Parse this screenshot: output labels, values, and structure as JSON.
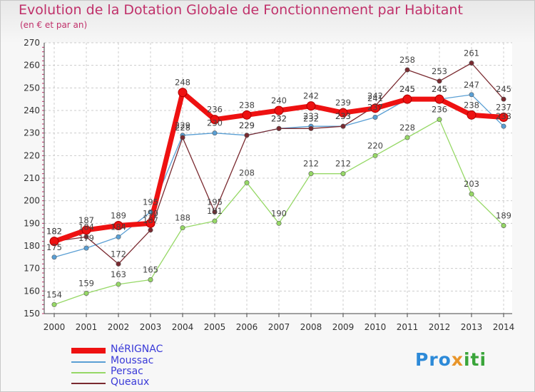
{
  "title": "Evolution de la Dotation Globale de Fonctionnement par Habitant",
  "subtitle": "(en € et par an)",
  "logo": {
    "part1": "Pro",
    "part2": "x",
    "part3": "iti"
  },
  "colors": {
    "title": "#c0306a",
    "grid": "#cccccc",
    "axis": "#444444",
    "legend_text": "#3a3ad8"
  },
  "chart_data": {
    "type": "line",
    "x": [
      2000,
      2001,
      2002,
      2003,
      2004,
      2005,
      2006,
      2007,
      2008,
      2009,
      2010,
      2011,
      2012,
      2013,
      2014
    ],
    "ylim": [
      150,
      270
    ],
    "yticks": [
      150,
      160,
      170,
      180,
      190,
      200,
      210,
      220,
      230,
      240,
      250,
      260,
      270
    ],
    "xlabel": "",
    "ylabel": "",
    "legend_position": "bottom-left",
    "series": [
      {
        "name": "NéRIGNAC",
        "color": "#ee1111",
        "values": [
          182,
          187,
          189,
          190,
          248,
          236,
          238,
          240,
          242,
          239,
          241,
          245,
          245,
          238,
          237
        ]
      },
      {
        "name": "Moussac",
        "color": "#5a9fd4",
        "values": [
          175,
          179,
          184,
          195,
          229,
          230,
          229,
          232,
          233,
          233,
          237,
          245,
          245,
          247,
          233
        ]
      },
      {
        "name": "Persac",
        "color": "#96d866",
        "values": [
          154,
          159,
          163,
          165,
          188,
          191,
          208,
          190,
          212,
          212,
          220,
          228,
          236,
          203,
          189
        ]
      },
      {
        "name": "Queaux",
        "color": "#7a2a30",
        "values": [
          182,
          184,
          172,
          187,
          228,
          195,
          229,
          232,
          232,
          233,
          242,
          258,
          253,
          261,
          245
        ]
      }
    ]
  }
}
